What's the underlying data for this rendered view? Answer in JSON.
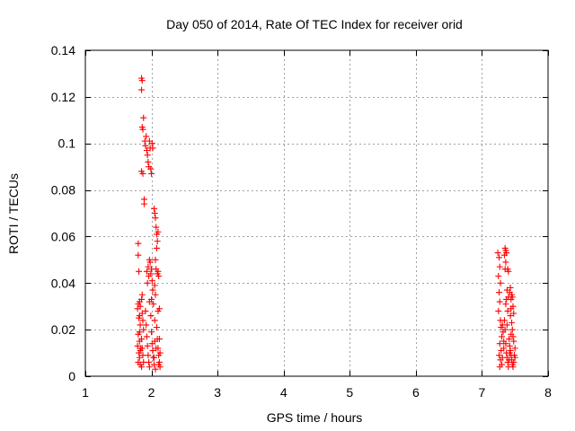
{
  "chart_data": {
    "type": "scatter",
    "title": "Day 050 of 2014, Rate Of TEC Index for receiver orid",
    "xlabel": "GPS time / hours",
    "ylabel": "ROTI / TECUs",
    "xlim": [
      1,
      8
    ],
    "ylim": [
      0,
      0.14
    ],
    "xticks": [
      1,
      2,
      3,
      4,
      5,
      6,
      7,
      8
    ],
    "yticks": [
      0,
      0.02,
      0.04,
      0.06,
      0.08,
      0.1,
      0.12,
      0.14
    ],
    "xtick_labels": [
      "1",
      "2",
      "3",
      "4",
      "5",
      "6",
      "7",
      "8"
    ],
    "ytick_labels": [
      "0",
      "0.02",
      "0.04",
      "0.06",
      "0.08",
      "0.1",
      "0.12",
      "0.14"
    ],
    "grid": true,
    "marker": "+",
    "color": "#ff0000",
    "series": [
      {
        "name": "ROTI",
        "points": [
          [
            1.8,
            0.057
          ],
          [
            1.8,
            0.052
          ],
          [
            1.81,
            0.045
          ],
          [
            1.8,
            0.031
          ],
          [
            1.79,
            0.029
          ],
          [
            1.81,
            0.025
          ],
          [
            1.8,
            0.018
          ],
          [
            1.79,
            0.013
          ],
          [
            1.81,
            0.01
          ],
          [
            1.8,
            0.006
          ],
          [
            1.82,
            0.032
          ],
          [
            1.83,
            0.03
          ],
          [
            1.82,
            0.026
          ],
          [
            1.83,
            0.022
          ],
          [
            1.82,
            0.015
          ],
          [
            1.83,
            0.011
          ],
          [
            1.82,
            0.008
          ],
          [
            1.83,
            0.005
          ],
          [
            1.82,
            0.019
          ],
          [
            1.84,
            0.012
          ],
          [
            1.85,
            0.128
          ],
          [
            1.86,
            0.127
          ],
          [
            1.85,
            0.123
          ],
          [
            1.85,
            0.088
          ],
          [
            1.86,
            0.107
          ],
          [
            1.87,
            0.106
          ],
          [
            1.88,
            0.111
          ],
          [
            1.87,
            0.087
          ],
          [
            1.89,
            0.076
          ],
          [
            1.89,
            0.074
          ],
          [
            1.85,
            0.033
          ],
          [
            1.86,
            0.027
          ],
          [
            1.87,
            0.024
          ],
          [
            1.85,
            0.016
          ],
          [
            1.86,
            0.012
          ],
          [
            1.87,
            0.009
          ],
          [
            1.88,
            0.006
          ],
          [
            1.85,
            0.004
          ],
          [
            1.88,
            0.02
          ],
          [
            1.86,
            0.035
          ],
          [
            1.9,
            0.101
          ],
          [
            1.91,
            0.099
          ],
          [
            1.92,
            0.103
          ],
          [
            1.93,
            0.097
          ],
          [
            1.94,
            0.095
          ],
          [
            1.95,
            0.092
          ],
          [
            1.97,
            0.101
          ],
          [
            1.98,
            0.098
          ],
          [
            1.99,
            0.089
          ],
          [
            2.0,
            0.087
          ],
          [
            1.96,
            0.09
          ],
          [
            2.01,
            0.1
          ],
          [
            2.02,
            0.098
          ],
          [
            1.91,
            0.028
          ],
          [
            1.92,
            0.022
          ],
          [
            1.93,
            0.017
          ],
          [
            1.94,
            0.013
          ],
          [
            1.95,
            0.009
          ],
          [
            1.96,
            0.006
          ],
          [
            1.97,
            0.004
          ],
          [
            1.93,
            0.045
          ],
          [
            1.94,
            0.04
          ],
          [
            1.95,
            0.047
          ],
          [
            1.96,
            0.043
          ],
          [
            1.97,
            0.05
          ],
          [
            1.98,
            0.049
          ],
          [
            1.99,
            0.044
          ],
          [
            2.0,
            0.046
          ],
          [
            2.01,
            0.041
          ],
          [
            2.02,
            0.037
          ],
          [
            1.97,
            0.032
          ],
          [
            1.99,
            0.026
          ],
          [
            2.0,
            0.019
          ],
          [
            2.01,
            0.014
          ],
          [
            2.02,
            0.011
          ],
          [
            2.03,
            0.008
          ],
          [
            2.04,
            0.005
          ],
          [
            2.0,
            0.033
          ],
          [
            2.03,
            0.031
          ],
          [
            2.05,
            0.024
          ],
          [
            2.04,
            0.072
          ],
          [
            2.05,
            0.07
          ],
          [
            2.06,
            0.068
          ],
          [
            2.07,
            0.064
          ],
          [
            2.08,
            0.061
          ],
          [
            2.09,
            0.058
          ],
          [
            2.1,
            0.062
          ],
          [
            2.08,
            0.055
          ],
          [
            2.06,
            0.05
          ],
          [
            2.07,
            0.046
          ],
          [
            2.09,
            0.044
          ],
          [
            2.1,
            0.045
          ],
          [
            2.11,
            0.043
          ],
          [
            2.12,
            0.029
          ],
          [
            2.1,
            0.028
          ],
          [
            2.05,
            0.039
          ],
          [
            2.06,
            0.035
          ],
          [
            2.08,
            0.021
          ],
          [
            2.09,
            0.016
          ],
          [
            2.1,
            0.012
          ],
          [
            2.11,
            0.009
          ],
          [
            2.12,
            0.006
          ],
          [
            2.13,
            0.004
          ],
          [
            2.07,
            0.012
          ],
          [
            2.05,
            0.015
          ],
          [
            2.12,
            0.016
          ],
          [
            2.13,
            0.01
          ],
          [
            2.04,
            0.008
          ],
          [
            2.11,
            0.005
          ],
          [
            2.06,
            0.003
          ],
          [
            7.24,
            0.053
          ],
          [
            7.26,
            0.051
          ],
          [
            7.27,
            0.047
          ],
          [
            7.25,
            0.043
          ],
          [
            7.28,
            0.04
          ],
          [
            7.26,
            0.036
          ],
          [
            7.27,
            0.032
          ],
          [
            7.25,
            0.028
          ],
          [
            7.28,
            0.024
          ],
          [
            7.29,
            0.021
          ],
          [
            7.3,
            0.017
          ],
          [
            7.27,
            0.014
          ],
          [
            7.29,
            0.011
          ],
          [
            7.26,
            0.009
          ],
          [
            7.28,
            0.007
          ],
          [
            7.3,
            0.005
          ],
          [
            7.27,
            0.004
          ],
          [
            7.31,
            0.022
          ],
          [
            7.32,
            0.019
          ],
          [
            7.33,
            0.015
          ],
          [
            7.34,
            0.052
          ],
          [
            7.35,
            0.055
          ],
          [
            7.36,
            0.054
          ],
          [
            7.37,
            0.053
          ],
          [
            7.36,
            0.049
          ],
          [
            7.35,
            0.046
          ],
          [
            7.39,
            0.046
          ],
          [
            7.4,
            0.045
          ],
          [
            7.38,
            0.037
          ],
          [
            7.37,
            0.033
          ],
          [
            7.4,
            0.034
          ],
          [
            7.42,
            0.036
          ],
          [
            7.43,
            0.038
          ],
          [
            7.44,
            0.033
          ],
          [
            7.45,
            0.035
          ],
          [
            7.46,
            0.034
          ],
          [
            7.44,
            0.029
          ],
          [
            7.43,
            0.026
          ],
          [
            7.45,
            0.023
          ],
          [
            7.46,
            0.02
          ],
          [
            7.47,
            0.017
          ],
          [
            7.48,
            0.015
          ],
          [
            7.41,
            0.016
          ],
          [
            7.42,
            0.013
          ],
          [
            7.43,
            0.011
          ],
          [
            7.44,
            0.009
          ],
          [
            7.45,
            0.007
          ],
          [
            7.46,
            0.005
          ],
          [
            7.47,
            0.004
          ],
          [
            7.48,
            0.006
          ],
          [
            7.49,
            0.009
          ],
          [
            7.5,
            0.012
          ],
          [
            7.34,
            0.024
          ],
          [
            7.35,
            0.02
          ],
          [
            7.36,
            0.014
          ],
          [
            7.37,
            0.01
          ],
          [
            7.38,
            0.008
          ],
          [
            7.39,
            0.006
          ],
          [
            7.4,
            0.004
          ],
          [
            7.41,
            0.007
          ],
          [
            7.38,
            0.022
          ],
          [
            7.39,
            0.028
          ],
          [
            7.47,
            0.03
          ],
          [
            7.48,
            0.027
          ],
          [
            7.42,
            0.01
          ],
          [
            7.33,
            0.012
          ],
          [
            7.36,
            0.031
          ],
          [
            7.44,
            0.018
          ],
          [
            7.5,
            0.008
          ],
          [
            7.31,
            0.008
          ]
        ]
      }
    ]
  }
}
